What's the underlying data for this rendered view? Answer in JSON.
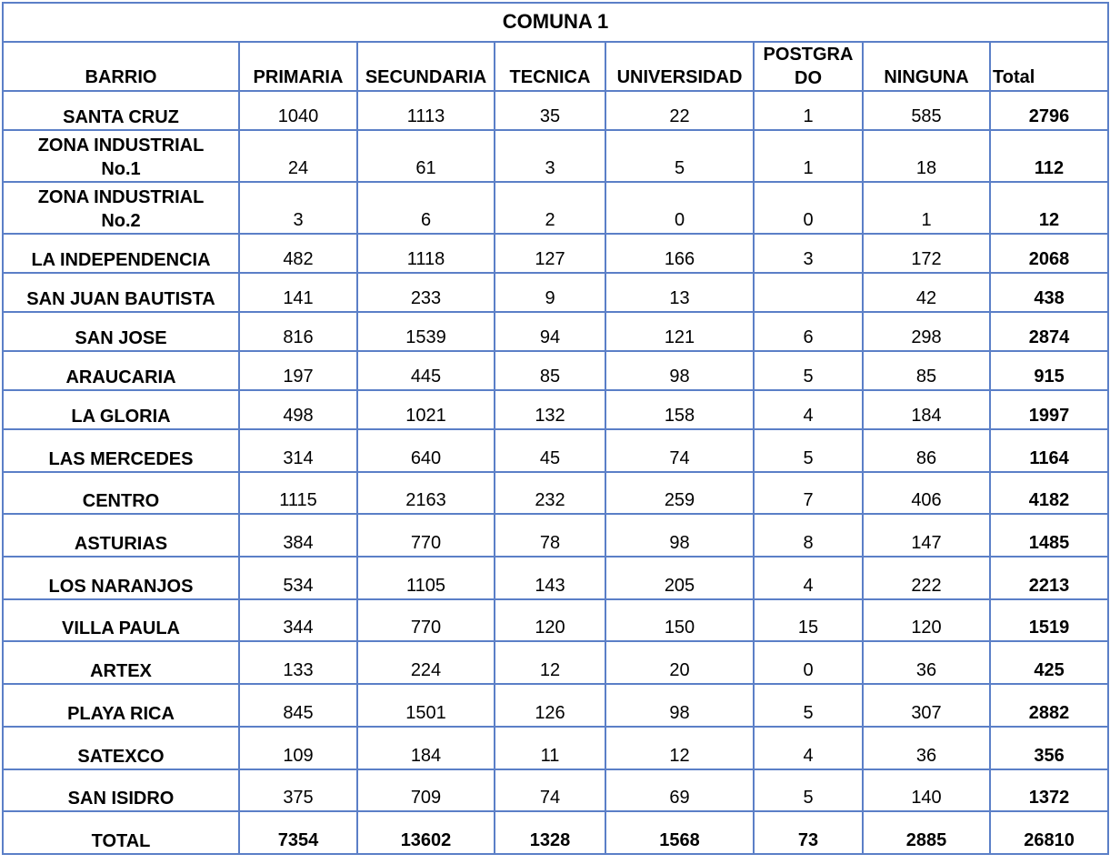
{
  "header": {
    "title": "COMUNA 1"
  },
  "table": {
    "columns": [
      "BARRIO",
      "PRIMARIA",
      "SECUNDARIA",
      "TECNICA",
      "UNIVERSIDAD",
      "POSTGRADO",
      "NINGUNA",
      "Total"
    ],
    "rows": [
      [
        "SANTA CRUZ",
        1040,
        1113,
        35,
        22,
        1,
        585,
        2796
      ],
      [
        "ZONA INDUSTRIAL No.1",
        24,
        61,
        3,
        5,
        1,
        18,
        112
      ],
      [
        "ZONA INDUSTRIAL No.2",
        3,
        6,
        2,
        0,
        0,
        1,
        12
      ],
      [
        "LA INDEPENDENCIA",
        482,
        1118,
        127,
        166,
        3,
        172,
        2068
      ],
      [
        "SAN JUAN BAUTISTA",
        141,
        233,
        9,
        13,
        null,
        42,
        438
      ],
      [
        "SAN JOSE",
        816,
        1539,
        94,
        121,
        6,
        298,
        2874
      ],
      [
        "ARAUCARIA",
        197,
        445,
        85,
        98,
        5,
        85,
        915
      ],
      [
        "LA GLORIA",
        498,
        1021,
        132,
        158,
        4,
        184,
        1997
      ],
      [
        "LAS MERCEDES",
        314,
        640,
        45,
        74,
        5,
        86,
        1164
      ],
      [
        "CENTRO",
        1115,
        2163,
        232,
        259,
        7,
        406,
        4182
      ],
      [
        "ASTURIAS",
        384,
        770,
        78,
        98,
        8,
        147,
        1485
      ],
      [
        "LOS NARANJOS",
        534,
        1105,
        143,
        205,
        4,
        222,
        2213
      ],
      [
        "VILLA PAULA",
        344,
        770,
        120,
        150,
        15,
        120,
        1519
      ],
      [
        "ARTEX",
        133,
        224,
        12,
        20,
        0,
        36,
        425
      ],
      [
        "PLAYA RICA",
        845,
        1501,
        126,
        98,
        5,
        307,
        2882
      ],
      [
        "SATEXCO",
        109,
        184,
        11,
        12,
        4,
        36,
        356
      ],
      [
        "SAN ISIDRO",
        375,
        709,
        74,
        69,
        5,
        140,
        1372
      ],
      [
        "TOTAL",
        7354,
        13602,
        1328,
        1568,
        73,
        2885,
        26810
      ]
    ]
  }
}
